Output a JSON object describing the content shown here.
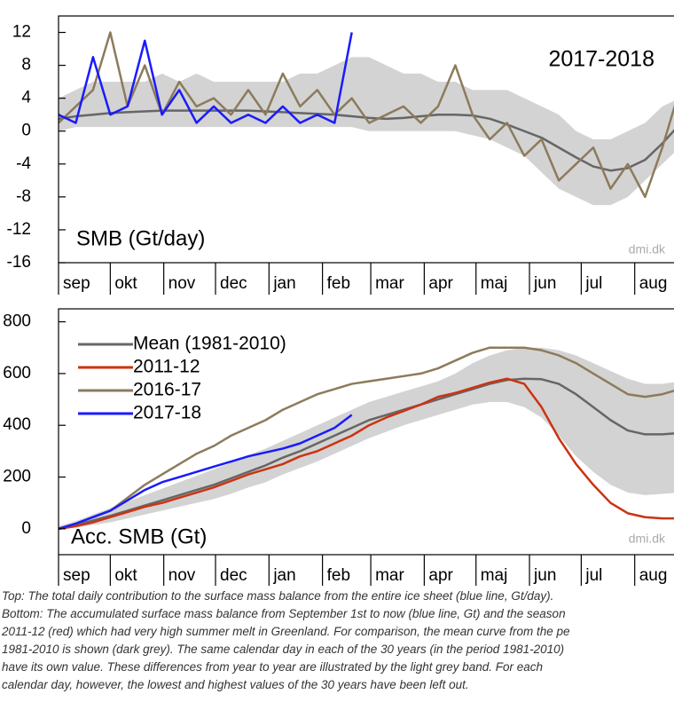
{
  "chart_data": [
    {
      "type": "line",
      "title": "SMB (Gt/day)",
      "annotation": "2017-2018",
      "watermark": "dmi.dk",
      "x": [
        0,
        10,
        20,
        30,
        40,
        50,
        60,
        70,
        80,
        90,
        100,
        110,
        120,
        130,
        140,
        150,
        160,
        170,
        180,
        190,
        200,
        210,
        220,
        230,
        240,
        250,
        260,
        270,
        280,
        290,
        300,
        310,
        320,
        330,
        340,
        350,
        360
      ],
      "xlim": [
        0,
        365
      ],
      "xticks": [
        {
          "value": 0,
          "label": "sep"
        },
        {
          "value": 30,
          "label": "okt"
        },
        {
          "value": 61,
          "label": "nov"
        },
        {
          "value": 91,
          "label": "dec"
        },
        {
          "value": 122,
          "label": "jan"
        },
        {
          "value": 153,
          "label": "feb"
        },
        {
          "value": 181,
          "label": "mar"
        },
        {
          "value": 212,
          "label": "apr"
        },
        {
          "value": 242,
          "label": "maj"
        },
        {
          "value": 273,
          "label": "jun"
        },
        {
          "value": 303,
          "label": "jul"
        },
        {
          "value": 334,
          "label": "aug"
        }
      ],
      "ylim": [
        -16,
        14
      ],
      "yticks": [
        12,
        8,
        4,
        0,
        -4,
        -8,
        -12,
        -16
      ],
      "band": {
        "color": "#d3d3d3",
        "upper": [
          4,
          5,
          6,
          6,
          6,
          6,
          7,
          6,
          7,
          6,
          6,
          6,
          6,
          6,
          7,
          7,
          8,
          9,
          9,
          8,
          7,
          7,
          6,
          6,
          5,
          5,
          5,
          4,
          3,
          2,
          0,
          -1,
          -1,
          0,
          1,
          3,
          4
        ],
        "lower": [
          0,
          0.5,
          0.5,
          0.5,
          0.5,
          0.5,
          0.5,
          0.5,
          0.5,
          0.5,
          0.5,
          0.5,
          0.5,
          0.5,
          0.5,
          0.5,
          0.5,
          0.5,
          0,
          0,
          0,
          0,
          0,
          0,
          -0.5,
          -1,
          -2,
          -3,
          -5,
          -7,
          -8,
          -9,
          -9,
          -8,
          -6,
          -4,
          -2
        ]
      },
      "series": [
        {
          "color": "#666666",
          "values": [
            1.5,
            1.8,
            2,
            2.2,
            2.3,
            2.4,
            2.5,
            2.5,
            2.5,
            2.5,
            2.5,
            2.5,
            2.4,
            2.3,
            2.2,
            2.1,
            2.0,
            1.8,
            1.6,
            1.5,
            1.6,
            1.8,
            2.0,
            2.0,
            1.9,
            1.5,
            0.8,
            0.0,
            -0.8,
            -2.0,
            -3.2,
            -4.3,
            -4.8,
            -4.5,
            -3.5,
            -1.5,
            0.8
          ]
        },
        {
          "color": "#8c7b5c",
          "values": [
            1,
            3,
            5,
            12,
            3,
            8,
            2,
            6,
            3,
            4,
            2,
            5,
            2,
            7,
            3,
            5,
            2,
            4,
            1,
            2,
            3,
            1,
            3,
            8,
            2,
            -1,
            1,
            -3,
            -1,
            -6,
            -4,
            -2,
            -7,
            -4,
            -8,
            -2,
            5
          ]
        },
        {
          "color": "#1a1aff",
          "values": [
            2,
            1,
            9,
            2,
            3,
            11,
            2,
            5,
            1,
            3,
            1,
            2,
            1,
            3,
            1,
            2,
            1,
            12,
            null,
            null,
            null,
            null,
            null,
            null,
            null,
            null,
            null,
            null,
            null,
            null,
            null,
            null,
            null,
            null,
            null,
            null,
            null
          ]
        }
      ]
    },
    {
      "type": "line",
      "title": "Acc. SMB (Gt)",
      "watermark": "dmi.dk",
      "x": [
        0,
        10,
        20,
        30,
        40,
        50,
        60,
        70,
        80,
        90,
        100,
        110,
        120,
        130,
        140,
        150,
        160,
        170,
        180,
        190,
        200,
        210,
        220,
        230,
        240,
        250,
        260,
        270,
        280,
        290,
        300,
        310,
        320,
        330,
        340,
        350,
        360
      ],
      "xlim": [
        0,
        365
      ],
      "xticks": [
        {
          "value": 0,
          "label": "sep"
        },
        {
          "value": 30,
          "label": "okt"
        },
        {
          "value": 61,
          "label": "nov"
        },
        {
          "value": 91,
          "label": "dec"
        },
        {
          "value": 122,
          "label": "jan"
        },
        {
          "value": 153,
          "label": "feb"
        },
        {
          "value": 181,
          "label": "mar"
        },
        {
          "value": 212,
          "label": "apr"
        },
        {
          "value": 242,
          "label": "maj"
        },
        {
          "value": 273,
          "label": "jun"
        },
        {
          "value": 303,
          "label": "jul"
        },
        {
          "value": 334,
          "label": "aug"
        }
      ],
      "ylim": [
        -100,
        850
      ],
      "yticks": [
        800,
        600,
        400,
        200,
        0
      ],
      "band": {
        "color": "#d3d3d3",
        "upper": [
          10,
          30,
          55,
          80,
          105,
          130,
          155,
          180,
          205,
          230,
          255,
          285,
          310,
          340,
          370,
          400,
          430,
          460,
          490,
          510,
          530,
          550,
          570,
          600,
          640,
          670,
          690,
          700,
          700,
          690,
          670,
          640,
          610,
          580,
          560,
          560,
          570
        ],
        "lower": [
          -5,
          5,
          15,
          25,
          40,
          55,
          70,
          85,
          100,
          115,
          135,
          160,
          180,
          210,
          235,
          260,
          290,
          320,
          350,
          375,
          400,
          420,
          440,
          460,
          480,
          490,
          490,
          470,
          430,
          360,
          280,
          220,
          170,
          140,
          130,
          135,
          140
        ]
      },
      "legend": "upper left",
      "series": [
        {
          "name": "Mean (1981-2010)",
          "color": "#666666",
          "values": [
            0,
            15,
            32,
            50,
            70,
            90,
            110,
            130,
            150,
            170,
            195,
            220,
            245,
            275,
            300,
            330,
            360,
            390,
            420,
            440,
            460,
            480,
            500,
            520,
            540,
            560,
            575,
            580,
            578,
            560,
            520,
            470,
            420,
            380,
            365,
            365,
            370
          ]
        },
        {
          "name": "2011-12",
          "color": "#cc3311",
          "values": [
            0,
            10,
            25,
            45,
            65,
            85,
            100,
            120,
            140,
            160,
            185,
            210,
            230,
            250,
            280,
            300,
            330,
            360,
            400,
            430,
            455,
            480,
            510,
            525,
            545,
            565,
            580,
            560,
            470,
            350,
            250,
            170,
            100,
            60,
            45,
            40,
            40
          ]
        },
        {
          "name": "2016-17",
          "color": "#8c7b5c",
          "values": [
            0,
            20,
            45,
            70,
            120,
            170,
            210,
            250,
            290,
            320,
            360,
            390,
            420,
            460,
            490,
            520,
            540,
            560,
            570,
            580,
            590,
            600,
            620,
            650,
            680,
            700,
            700,
            700,
            690,
            670,
            640,
            600,
            560,
            520,
            510,
            520,
            540
          ]
        },
        {
          "name": "2017-18",
          "color": "#1a1aff",
          "values": [
            0,
            20,
            45,
            70,
            110,
            150,
            180,
            200,
            220,
            240,
            260,
            280,
            295,
            310,
            330,
            360,
            390,
            440,
            null,
            null,
            null,
            null,
            null,
            null,
            null,
            null,
            null,
            null,
            null,
            null,
            null,
            null,
            null,
            null,
            null,
            null,
            null
          ]
        }
      ]
    }
  ],
  "caption": {
    "lines": [
      "Top: The total daily contribution to the surface mass balance from the entire ice sheet (blue line, Gt/day).",
      "Bottom: The accumulated surface mass balance from September 1st to now (blue line, Gt) and the season",
      "2011-12 (red) which had very high summer melt in Greenland. For comparison, the mean curve from the pe",
      "1981-2010 is shown (dark grey). The same calendar day in each of the 30 years (in the period 1981-2010)",
      "have its own value. These differences from year to year are illustrated by the light grey band. For each",
      "calendar day, however, the lowest and highest values of the 30 years have been left out."
    ]
  }
}
